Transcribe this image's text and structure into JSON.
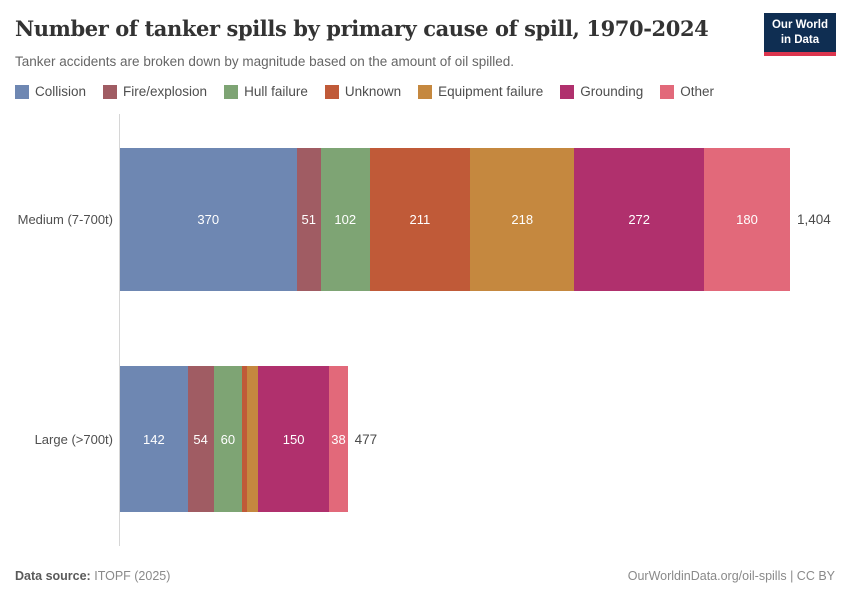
{
  "header": {
    "logo": {
      "line1": "Our World",
      "line2": "in Data"
    }
  },
  "chart_data": {
    "type": "bar",
    "orientation": "horizontal",
    "stacked": true,
    "title": "Number of tanker spills by primary cause of spill, 1970-2024",
    "subtitle": "Tanker accidents are broken down by magnitude based on the amount of oil spilled.",
    "legend_position": "top",
    "grid": false,
    "value_labels": true,
    "xlim": [
      0,
      1404
    ],
    "categories": [
      "Medium (7-700t)",
      "Large (>700t)"
    ],
    "series": [
      {
        "name": "Collision",
        "color": "#6e87b2",
        "values": [
          370,
          142
        ]
      },
      {
        "name": "Fire/explosion",
        "color": "#a05c63",
        "values": [
          51,
          54
        ]
      },
      {
        "name": "Hull failure",
        "color": "#7ea474",
        "values": [
          102,
          60
        ]
      },
      {
        "name": "Unknown",
        "color": "#c05a38",
        "values": [
          211,
          11
        ]
      },
      {
        "name": "Equipment failure",
        "color": "#c5883f",
        "values": [
          218,
          22
        ]
      },
      {
        "name": "Grounding",
        "color": "#b0306d",
        "values": [
          272,
          150
        ]
      },
      {
        "name": "Other",
        "color": "#e2697a",
        "values": [
          180,
          38
        ]
      }
    ],
    "totals": [
      1404,
      477
    ],
    "total_labels": [
      "1,404",
      "477"
    ]
  },
  "footer": {
    "source_label": "Data source:",
    "source_value": "ITOPF (2025)",
    "link": "OurWorldinData.org/oil-spills | CC BY"
  }
}
